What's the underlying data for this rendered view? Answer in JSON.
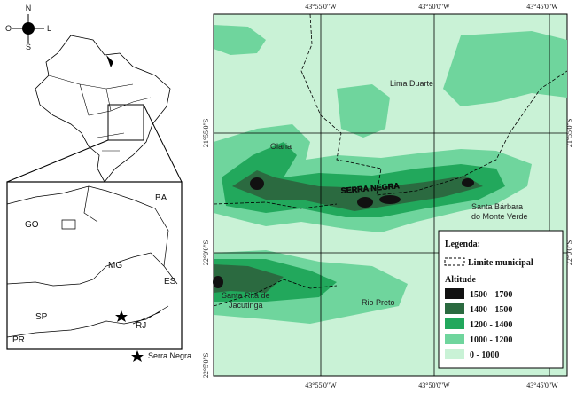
{
  "compass": {
    "north": "N",
    "east": "L",
    "south": "S",
    "west": "O"
  },
  "inset": {
    "states": [
      "BA",
      "GO",
      "MG",
      "ES",
      "SP",
      "RJ",
      "PR"
    ],
    "star_label": "Serra Negra"
  },
  "map": {
    "top_coords": [
      "43°55'0\"W",
      "43°50'0\"W",
      "43°45'0\"W"
    ],
    "bottom_coords": [
      "43°55'0\"W",
      "43°50'0\"W",
      "43°45'0\"W"
    ],
    "left_coords": [
      "21°55'0\"S",
      "22°0'0\"S",
      "22°5'0\"S"
    ],
    "right_coords": [
      "21°55'0\"S",
      "22°0'0\"S"
    ],
    "places": [
      "Lima Duarte",
      "Olaria",
      "SERRA NEGRA",
      "Santa Bárbara",
      "do Monte Verde",
      "Santa Rita de",
      "Jacutinga",
      "Rio Preto"
    ]
  },
  "legend": {
    "title": "Legenda:",
    "boundary": "Limite municipal",
    "altitude": "Altitude",
    "classes": [
      "1500 - 1700",
      "1400 - 1500",
      "1200 - 1400",
      "1000 - 1200",
      "0 - 1000"
    ]
  }
}
